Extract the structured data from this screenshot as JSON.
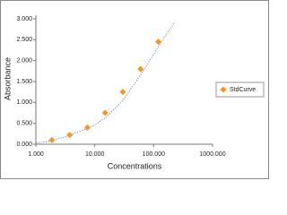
{
  "chart_data": {
    "type": "scatter",
    "x_label": "Concentrations",
    "y_label": "Absorbance",
    "xscale": "log",
    "xlim": [
      1,
      1000
    ],
    "xticks": [
      {
        "value": 1,
        "label": "1.000"
      },
      {
        "value": 10,
        "label": "10.000"
      },
      {
        "value": 100,
        "label": "100.000"
      },
      {
        "value": 1000,
        "label": "1000.000"
      }
    ],
    "ylim": [
      0,
      3
    ],
    "yticks": [
      {
        "value": 0,
        "label": "0.000"
      },
      {
        "value": 0.5,
        "label": "0.500"
      },
      {
        "value": 1,
        "label": "1.000"
      },
      {
        "value": 1.5,
        "label": "1.500"
      },
      {
        "value": 2,
        "label": "2.000"
      },
      {
        "value": 2.5,
        "label": "2.500"
      },
      {
        "value": 3,
        "label": "3.000"
      }
    ],
    "series": [
      {
        "name": "StdCurve",
        "color": "#f7941d",
        "x": [
          1.875,
          3.75,
          7.5,
          15,
          30,
          60,
          120
        ],
        "values": [
          0.1,
          0.22,
          0.4,
          0.75,
          1.25,
          1.8,
          2.45
        ]
      }
    ],
    "fit": {
      "color": "#4a7fc1",
      "x": [
        1,
        1.5,
        2,
        3,
        5,
        7,
        10,
        15,
        20,
        30,
        50,
        70,
        100,
        150,
        200,
        230
      ],
      "values": [
        0.03,
        0.06,
        0.1,
        0.17,
        0.28,
        0.36,
        0.46,
        0.63,
        0.8,
        1.05,
        1.5,
        1.8,
        2.15,
        2.55,
        2.8,
        2.92
      ]
    },
    "legend": "right"
  }
}
